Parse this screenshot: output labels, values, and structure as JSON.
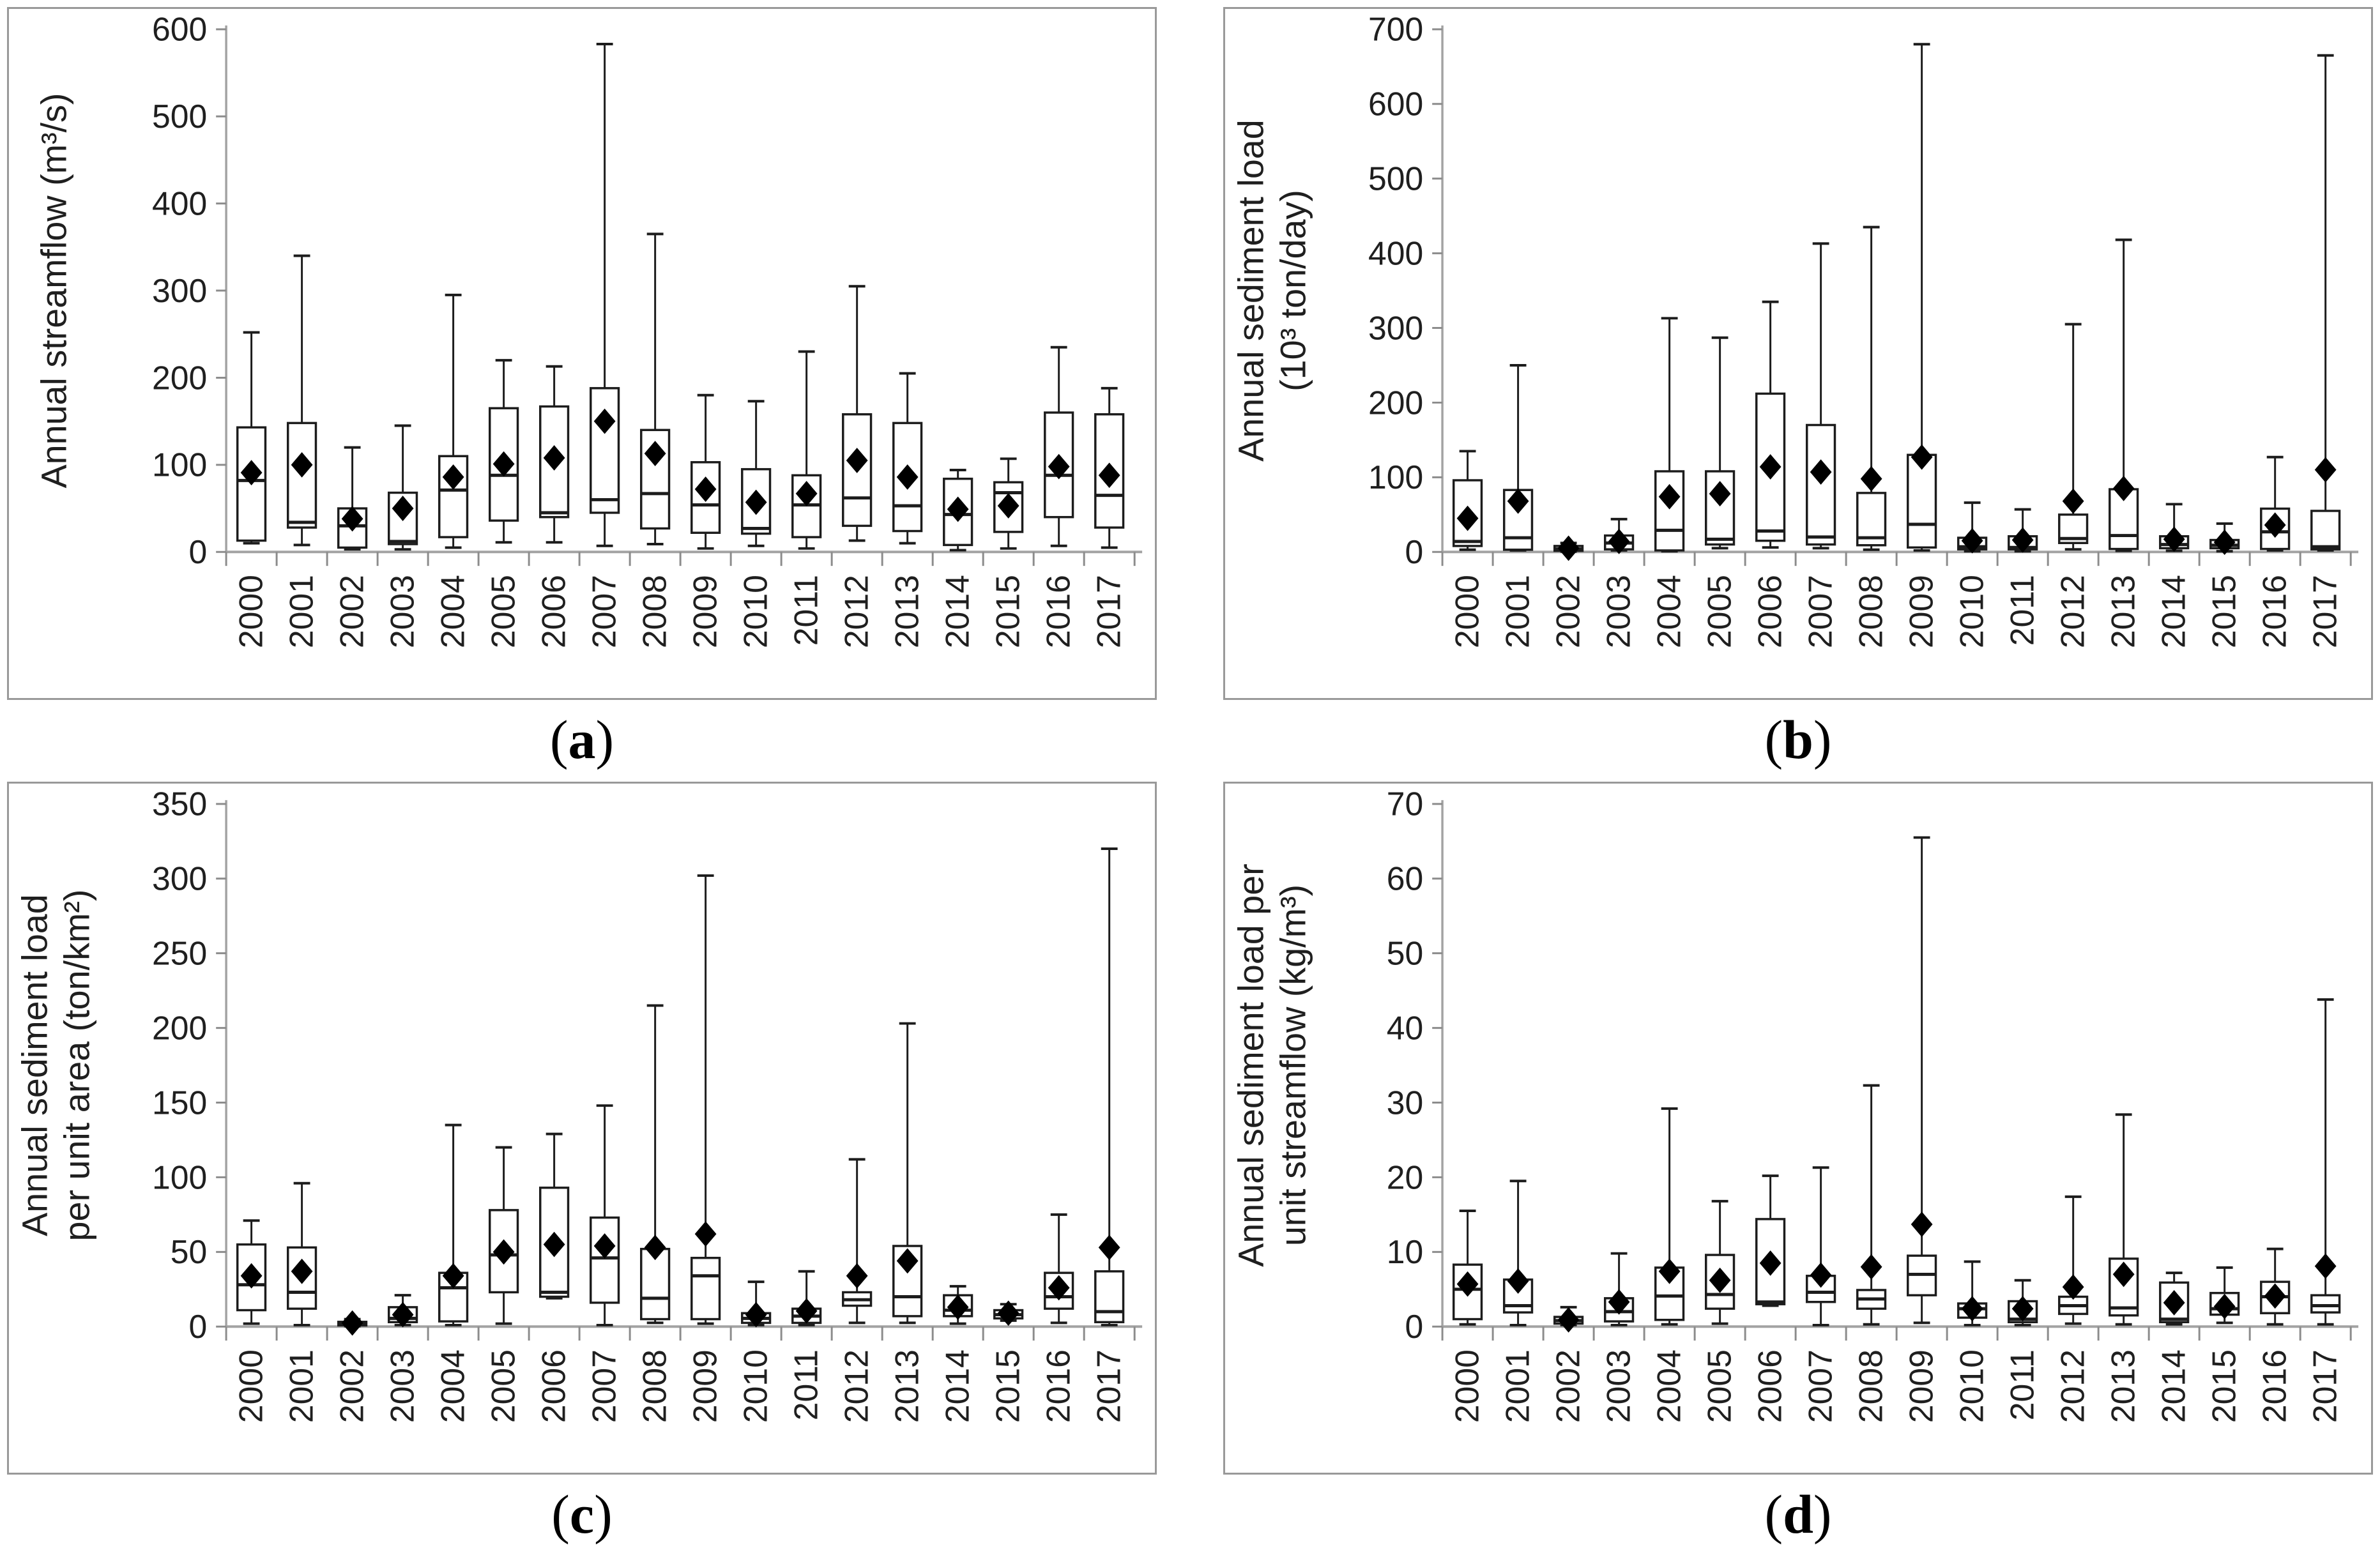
{
  "figure_name": "Annual streamflow and sediment load box plots 2000-2017",
  "style": {
    "box_fill": "#ffffff",
    "line_color": "#1c1c1c",
    "axis_color": "#a3a3a3",
    "tick_color": "#8c8c8c",
    "text_color": "#1f1f1f",
    "marker": "filled-diamond-mean"
  },
  "captions": [
    {
      "open": "(",
      "letter": "a",
      "close": ")"
    },
    {
      "open": "(",
      "letter": "b",
      "close": ")"
    },
    {
      "open": "(",
      "letter": "c",
      "close": ")"
    },
    {
      "open": "(",
      "letter": "d",
      "close": ")"
    }
  ],
  "chart_data": [
    {
      "panel": "a",
      "type": "box",
      "title": "",
      "ylabel_lines": [
        "Annual streamflow (m³/s)"
      ],
      "ylim": [
        0,
        600
      ],
      "yticks": [
        0,
        100,
        200,
        300,
        400,
        500,
        600
      ],
      "grid": false,
      "legend_position": "none",
      "categories": [
        "2000",
        "2001",
        "2002",
        "2003",
        "2004",
        "2005",
        "2006",
        "2007",
        "2008",
        "2009",
        "2010",
        "2011",
        "2012",
        "2013",
        "2014",
        "2015",
        "2016",
        "2017"
      ],
      "series": {
        "whisker_low": [
          10,
          8,
          3,
          3,
          5,
          11,
          11,
          7,
          9,
          4,
          7,
          4,
          13,
          10,
          2,
          4,
          7,
          5
        ],
        "q1": [
          13,
          28,
          5,
          9,
          17,
          36,
          40,
          45,
          27,
          22,
          21,
          17,
          30,
          24,
          8,
          23,
          40,
          28
        ],
        "median": [
          82,
          34,
          30,
          12,
          71,
          88,
          45,
          60,
          67,
          54,
          27,
          54,
          62,
          53,
          43,
          68,
          88,
          65
        ],
        "q3": [
          143,
          148,
          50,
          68,
          110,
          165,
          167,
          188,
          140,
          103,
          95,
          88,
          158,
          148,
          84,
          80,
          160,
          158
        ],
        "whisker_high": [
          252,
          340,
          120,
          145,
          295,
          220,
          213,
          583,
          365,
          180,
          173,
          230,
          305,
          205,
          94,
          107,
          235,
          188
        ],
        "mean": [
          91,
          100,
          38,
          50,
          86,
          101,
          108,
          150,
          113,
          72,
          57,
          67,
          105,
          86,
          49,
          53,
          98,
          88
        ]
      }
    },
    {
      "panel": "b",
      "type": "box",
      "title": "",
      "ylabel_lines": [
        "Annual sediment load",
        "(10³ ton/day)"
      ],
      "ylim": [
        0,
        700
      ],
      "yticks": [
        0,
        100,
        200,
        300,
        400,
        500,
        600,
        700
      ],
      "grid": false,
      "legend_position": "none",
      "categories": [
        "2000",
        "2001",
        "2002",
        "2003",
        "2004",
        "2005",
        "2006",
        "2007",
        "2008",
        "2009",
        "2010",
        "2011",
        "2012",
        "2013",
        "2014",
        "2015",
        "2016",
        "2017"
      ],
      "series": {
        "whisker_low": [
          3,
          2,
          0.5,
          2,
          1,
          5,
          6,
          5,
          3,
          2,
          1,
          1,
          3.5,
          1.5,
          1.5,
          1,
          2,
          2
        ],
        "q1": [
          8,
          3,
          1.5,
          3.5,
          2,
          10,
          15,
          10,
          9,
          6,
          3.5,
          3.5,
          12,
          4,
          5,
          5,
          4,
          3.5
        ],
        "median": [
          14,
          19,
          4,
          12,
          29,
          17,
          28,
          20,
          19,
          37,
          7,
          6,
          18,
          22,
          10,
          9,
          27,
          7
        ],
        "q3": [
          96,
          83,
          8,
          22,
          108,
          108,
          212,
          170,
          79,
          130,
          19,
          21,
          50,
          84,
          21,
          16,
          58,
          55
        ],
        "whisker_high": [
          135,
          250,
          12,
          44,
          313,
          287,
          335,
          413,
          435,
          680,
          66,
          57,
          305,
          418,
          64,
          38,
          127,
          665
        ],
        "mean": [
          45,
          68,
          5,
          14,
          74,
          78,
          114,
          107,
          98,
          127,
          15,
          16,
          68,
          85,
          17,
          13,
          36,
          110
        ]
      }
    },
    {
      "panel": "c",
      "type": "box",
      "title": "",
      "ylabel_lines": [
        "Annual sediment load",
        "per unit area (ton/km²)"
      ],
      "ylim": [
        0,
        350
      ],
      "yticks": [
        0,
        50,
        100,
        150,
        200,
        250,
        300,
        350
      ],
      "grid": false,
      "legend_position": "none",
      "categories": [
        "2000",
        "2001",
        "2002",
        "2003",
        "2004",
        "2005",
        "2006",
        "2007",
        "2008",
        "2009",
        "2010",
        "2011",
        "2012",
        "2013",
        "2014",
        "2015",
        "2016",
        "2017"
      ],
      "series": {
        "whisker_low": [
          2,
          1,
          0.3,
          1,
          1,
          2,
          19,
          1,
          2.5,
          2,
          1,
          1,
          2.5,
          2.5,
          2,
          4,
          2.5,
          1
        ],
        "q1": [
          11,
          12,
          0.8,
          3,
          3.5,
          23,
          20,
          16,
          5,
          5,
          2.5,
          2.5,
          14,
          7,
          7,
          5.5,
          12,
          3
        ],
        "median": [
          28,
          23,
          1.8,
          5.5,
          26,
          48,
          23,
          46,
          19,
          34,
          5.5,
          7,
          18,
          20,
          11,
          8,
          20,
          10
        ],
        "q3": [
          55,
          53,
          3.2,
          13,
          36,
          78,
          93,
          73,
          52,
          46,
          9,
          12,
          23,
          54,
          21,
          11,
          36,
          37
        ],
        "whisker_high": [
          71,
          96,
          5,
          21,
          135,
          120,
          129,
          148,
          215,
          302,
          30,
          37,
          112,
          203,
          27,
          15,
          75,
          320
        ],
        "mean": [
          34,
          37,
          2.4,
          8,
          34,
          50,
          55,
          54,
          53,
          62,
          8,
          10.5,
          34,
          44,
          13,
          9,
          26,
          53
        ]
      }
    },
    {
      "panel": "d",
      "type": "box",
      "title": "",
      "ylabel_lines": [
        "Annual sediment load per",
        "unit streamflow (kg/m³)"
      ],
      "ylim": [
        0,
        70
      ],
      "yticks": [
        0,
        10,
        20,
        30,
        40,
        50,
        60,
        70
      ],
      "grid": false,
      "legend_position": "none",
      "categories": [
        "2000",
        "2001",
        "2002",
        "2003",
        "2004",
        "2005",
        "2006",
        "2007",
        "2008",
        "2009",
        "2010",
        "2011",
        "2012",
        "2013",
        "2014",
        "2015",
        "2016",
        "2017"
      ],
      "series": {
        "whisker_low": [
          0.3,
          0.2,
          0.2,
          0.2,
          0.3,
          0.4,
          2.8,
          0.2,
          0.3,
          0.5,
          0.2,
          0.2,
          0.4,
          0.3,
          0.3,
          0.5,
          0.3,
          0.3
        ],
        "q1": [
          1.0,
          1.9,
          0.4,
          0.7,
          0.9,
          2.4,
          3.0,
          3.3,
          2.4,
          4.2,
          1.2,
          0.6,
          1.7,
          1.5,
          0.6,
          1.6,
          1.8,
          1.9
        ],
        "median": [
          5.0,
          2.8,
          0.8,
          2.0,
          4.1,
          4.3,
          3.3,
          4.6,
          3.7,
          7.0,
          2.4,
          1.0,
          2.8,
          2.5,
          1.0,
          2.4,
          4.0,
          2.8
        ],
        "q3": [
          8.3,
          6.3,
          1.3,
          3.8,
          7.9,
          9.6,
          14.4,
          6.8,
          4.9,
          9.5,
          3.1,
          3.4,
          4.0,
          9.1,
          5.9,
          4.5,
          6.0,
          4.2
        ],
        "whisker_high": [
          15.5,
          19.5,
          2.6,
          9.8,
          29.2,
          16.8,
          20.2,
          21.3,
          32.3,
          65.5,
          8.7,
          6.2,
          17.4,
          28.4,
          7.2,
          7.9,
          10.4,
          43.8
        ],
        "mean": [
          5.7,
          6.1,
          0.9,
          3.3,
          7.4,
          6.2,
          8.5,
          6.9,
          8.0,
          13.7,
          2.4,
          2.4,
          5.3,
          7.0,
          3.2,
          2.7,
          4.1,
          8.1
        ]
      }
    }
  ]
}
